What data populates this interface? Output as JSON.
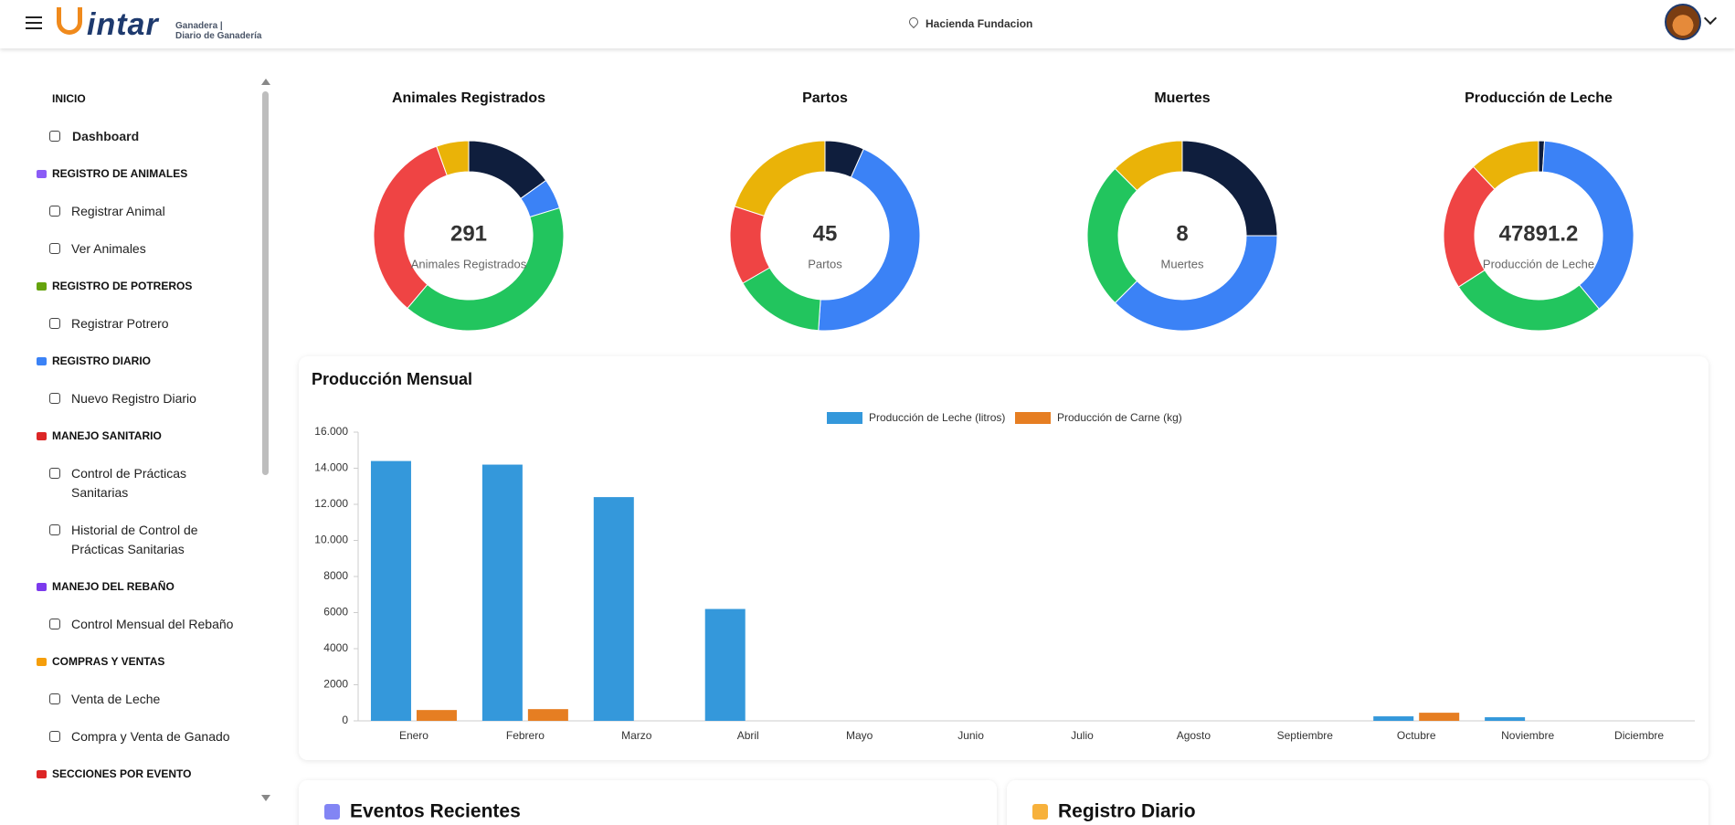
{
  "header": {
    "brand": "intar",
    "subtitle_1": "Ganadera |",
    "subtitle_2": "Diario de Ganadería",
    "location": "Hacienda Fundacion"
  },
  "sidebar": [
    {
      "title": "INICIO",
      "items": [
        "Dashboard"
      ]
    },
    {
      "title": "REGISTRO DE ANIMALES",
      "items": [
        "Registrar Animal",
        "Ver Animales"
      ]
    },
    {
      "title": "REGISTRO DE POTREROS",
      "items": [
        "Registrar Potrero"
      ]
    },
    {
      "title": "REGISTRO DIARIO",
      "items": [
        "Nuevo Registro Diario"
      ]
    },
    {
      "title": "MANEJO SANITARIO",
      "items": [
        "Control de Prácticas Sanitarias",
        "Historial de Control de Prácticas Sanitarias"
      ]
    },
    {
      "title": "MANEJO DEL REBAÑO",
      "items": [
        "Control Mensual del Rebaño"
      ]
    },
    {
      "title": "COMPRAS Y VENTAS",
      "items": [
        "Venta de Leche",
        "Compra y Venta de Ganado"
      ]
    },
    {
      "title": "SECCIONES POR EVENTO",
      "items": []
    }
  ],
  "chart_data": [
    {
      "type": "pie",
      "title": "Animales Registrados",
      "center_value": "291",
      "center_label": "Animales Registrados",
      "values": [
        44,
        15,
        119,
        97,
        16
      ],
      "colors": [
        "#0f1e3d",
        "#3b82f6",
        "#22c55e",
        "#ef4444",
        "#eab308"
      ]
    },
    {
      "type": "pie",
      "title": "Partos",
      "center_value": "45",
      "center_label": "Partos",
      "values": [
        3,
        20,
        7,
        6,
        9
      ],
      "colors": [
        "#0f1e3d",
        "#3b82f6",
        "#22c55e",
        "#ef4444",
        "#eab308"
      ]
    },
    {
      "type": "pie",
      "title": "Muertes",
      "center_value": "8",
      "center_label": "Muertes",
      "values": [
        2,
        3,
        2,
        1
      ],
      "colors": [
        "#0f1e3d",
        "#3b82f6",
        "#22c55e",
        "#eab308"
      ]
    },
    {
      "type": "pie",
      "title": "Producción de Leche",
      "center_value": "47891.2",
      "center_label": "Producción de Leche",
      "values": [
        480,
        18200,
        12900,
        10540,
        5771.2
      ],
      "colors": [
        "#0f1e3d",
        "#3b82f6",
        "#22c55e",
        "#ef4444",
        "#eab308"
      ]
    },
    {
      "type": "bar",
      "title": "Producción Mensual",
      "categories": [
        "Enero",
        "Febrero",
        "Marzo",
        "Abril",
        "Mayo",
        "Junio",
        "Julio",
        "Agosto",
        "Septiembre",
        "Octubre",
        "Noviembre",
        "Diciembre"
      ],
      "series": [
        {
          "name": "Producción de Leche (litros)",
          "color": "#3498db",
          "values": [
            14400,
            14200,
            12400,
            6200,
            0,
            0,
            0,
            0,
            0,
            250,
            200,
            0
          ]
        },
        {
          "name": "Producción de Carne (kg)",
          "color": "#e67e22",
          "values": [
            600,
            650,
            0,
            0,
            0,
            0,
            0,
            0,
            0,
            450,
            0,
            0
          ]
        }
      ],
      "ylim": [
        0,
        16000
      ],
      "yticks": [
        0,
        2000,
        4000,
        6000,
        8000,
        {
          "value": 10000,
          "label": "10.000"
        },
        {
          "value": 12000,
          "label": "12.000"
        },
        {
          "value": 14000,
          "label": "14.000"
        },
        {
          "value": 16000,
          "label": "16.000"
        }
      ],
      "legend": "top"
    }
  ],
  "panels": [
    "Eventos Recientes",
    "Registro Diario"
  ]
}
